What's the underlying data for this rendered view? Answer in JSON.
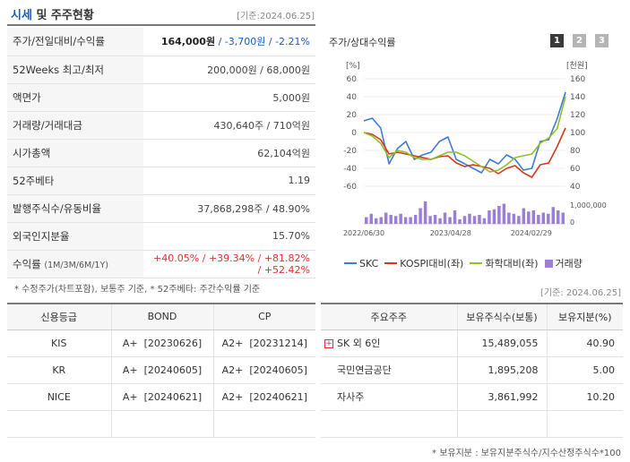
{
  "header": {
    "title_a": "시세",
    "title_b": " 및 주주현황",
    "date": "[기준:2024.06.25]"
  },
  "left_rows": [
    {
      "label": "주가/전일대비/수익률"
    },
    {
      "label": "52Weeks 최고/최저",
      "value": "200,000원 / 68,000원"
    },
    {
      "label": "액면가",
      "value": "5,000원"
    },
    {
      "label": "거래량/거래대금",
      "value": "430,640주 / 710억원"
    },
    {
      "label": "시가총액",
      "value": "62,104억원"
    },
    {
      "label": "52주베타",
      "value": "1.19"
    },
    {
      "label": "발행주식수/유동비율",
      "value": "37,868,298주 / 48.90%"
    },
    {
      "label": "외국인지분율",
      "value": "15.70%"
    },
    {
      "label": "수익률",
      "sublabel": "(1M/3M/6M/1Y)"
    }
  ],
  "price_row": {
    "price": "164,000원",
    "sep1": " / ",
    "change": "-3,700원",
    "sep2": " / ",
    "rate": "-2.21%"
  },
  "returns_row": {
    "r1": "+40.05%",
    "r2": "+39.34%",
    "r3": "+81.82%",
    "r4": "+52.42%",
    "sep": "/"
  },
  "note1": "* 수정주가(차트포함), 보통주 기준, * 52주베타: 주간수익률 기준",
  "chart_panel": {
    "title": "주가/상대수익률",
    "tabs": [
      "1",
      "2",
      "3"
    ],
    "active_tab": 0,
    "left_unit": "[%]",
    "right_unit": "[천원]",
    "volume_label": "1,000,000",
    "volume_zero": "0"
  },
  "chart_data": {
    "type": "line",
    "x_labels": [
      "2022/06/30",
      "2023/04/28",
      "2024/02/29"
    ],
    "y_left_ticks": [
      60,
      40,
      20,
      0,
      -20,
      -40,
      -60
    ],
    "y_right_ticks": [
      160,
      140,
      120,
      100,
      80,
      60,
      40
    ],
    "ylim_left": [
      -60,
      60
    ],
    "ylim_right": [
      40,
      160
    ],
    "series": [
      {
        "name": "SKC",
        "color": "#3e7bd6",
        "axis": "left",
        "values": [
          13,
          16,
          5,
          -35,
          -18,
          -10,
          -30,
          -25,
          -22,
          -10,
          -5,
          -30,
          -35,
          -40,
          -45,
          -30,
          -35,
          -25,
          -30,
          -42,
          -40,
          -10,
          -8,
          15,
          45
        ]
      },
      {
        "name": "KOSPI대비(좌)",
        "color": "#d03a1a",
        "axis": "left",
        "values": [
          0,
          -2,
          -8,
          -24,
          -22,
          -24,
          -26,
          -28,
          -30,
          -27,
          -26,
          -34,
          -38,
          -36,
          -38,
          -40,
          -46,
          -40,
          -37,
          -45,
          -50,
          -36,
          -34,
          -16,
          5
        ]
      },
      {
        "name": "화학대비(좌)",
        "color": "#8fbf2a",
        "axis": "left",
        "values": [
          0,
          -4,
          -12,
          -28,
          -20,
          -22,
          -28,
          -30,
          -30,
          -26,
          -22,
          -22,
          -26,
          -32,
          -38,
          -44,
          -42,
          -36,
          -28,
          -26,
          -24,
          -12,
          -6,
          4,
          40
        ]
      },
      {
        "name": "거래량",
        "color": "#9b7fd6",
        "axis": "volume",
        "values": [
          300,
          450,
          250,
          300,
          500,
          400,
          350,
          450,
          300,
          300,
          400,
          700,
          1000,
          350,
          400,
          250,
          500,
          300,
          600,
          200,
          350,
          450,
          350,
          400,
          250,
          600,
          650,
          800,
          900,
          500,
          450,
          350,
          700,
          550,
          600,
          400,
          500,
          450,
          750,
          600,
          500
        ]
      }
    ],
    "volume_max": 1200
  },
  "legend": [
    {
      "label": "SKC",
      "color": "#3e7bd6",
      "kind": "line"
    },
    {
      "label": "KOSPI대비(좌)",
      "color": "#d03a1a",
      "kind": "line"
    },
    {
      "label": "화학대비(좌)",
      "color": "#8fbf2a",
      "kind": "line"
    },
    {
      "label": "거래량",
      "color": "#9b7fd6",
      "kind": "bar"
    }
  ],
  "date2": "[기준: 2024.06.25]",
  "credit_table": {
    "headers": [
      "신용등급",
      "BOND",
      "CP"
    ],
    "rows": [
      {
        "agency": "KIS",
        "bond_grade": "A+",
        "bond_date": "[20230626]",
        "cp_grade": "A2+",
        "cp_date": "[20231214]"
      },
      {
        "agency": "KR",
        "bond_grade": "A+",
        "bond_date": "[20240605]",
        "cp_grade": "A2+",
        "cp_date": "[20240605]"
      },
      {
        "agency": "NICE",
        "bond_grade": "A+",
        "bond_date": "[20240621]",
        "cp_grade": "A2+",
        "cp_date": "[20240621]"
      }
    ]
  },
  "holder_table": {
    "headers": [
      "주요주주",
      "보유주식수(보통)",
      "보유지분(%)"
    ],
    "rows": [
      {
        "name": "SK 외 6인",
        "shares": "15,489,055",
        "pct": "40.90",
        "expand": "+"
      },
      {
        "name": "국민연금공단",
        "shares": "1,895,208",
        "pct": "5.00"
      },
      {
        "name": "자사주",
        "shares": "3,861,992",
        "pct": "10.20"
      }
    ]
  },
  "note2": "* 보유지분 : 보유지분주식수/지수산정주식수*100"
}
